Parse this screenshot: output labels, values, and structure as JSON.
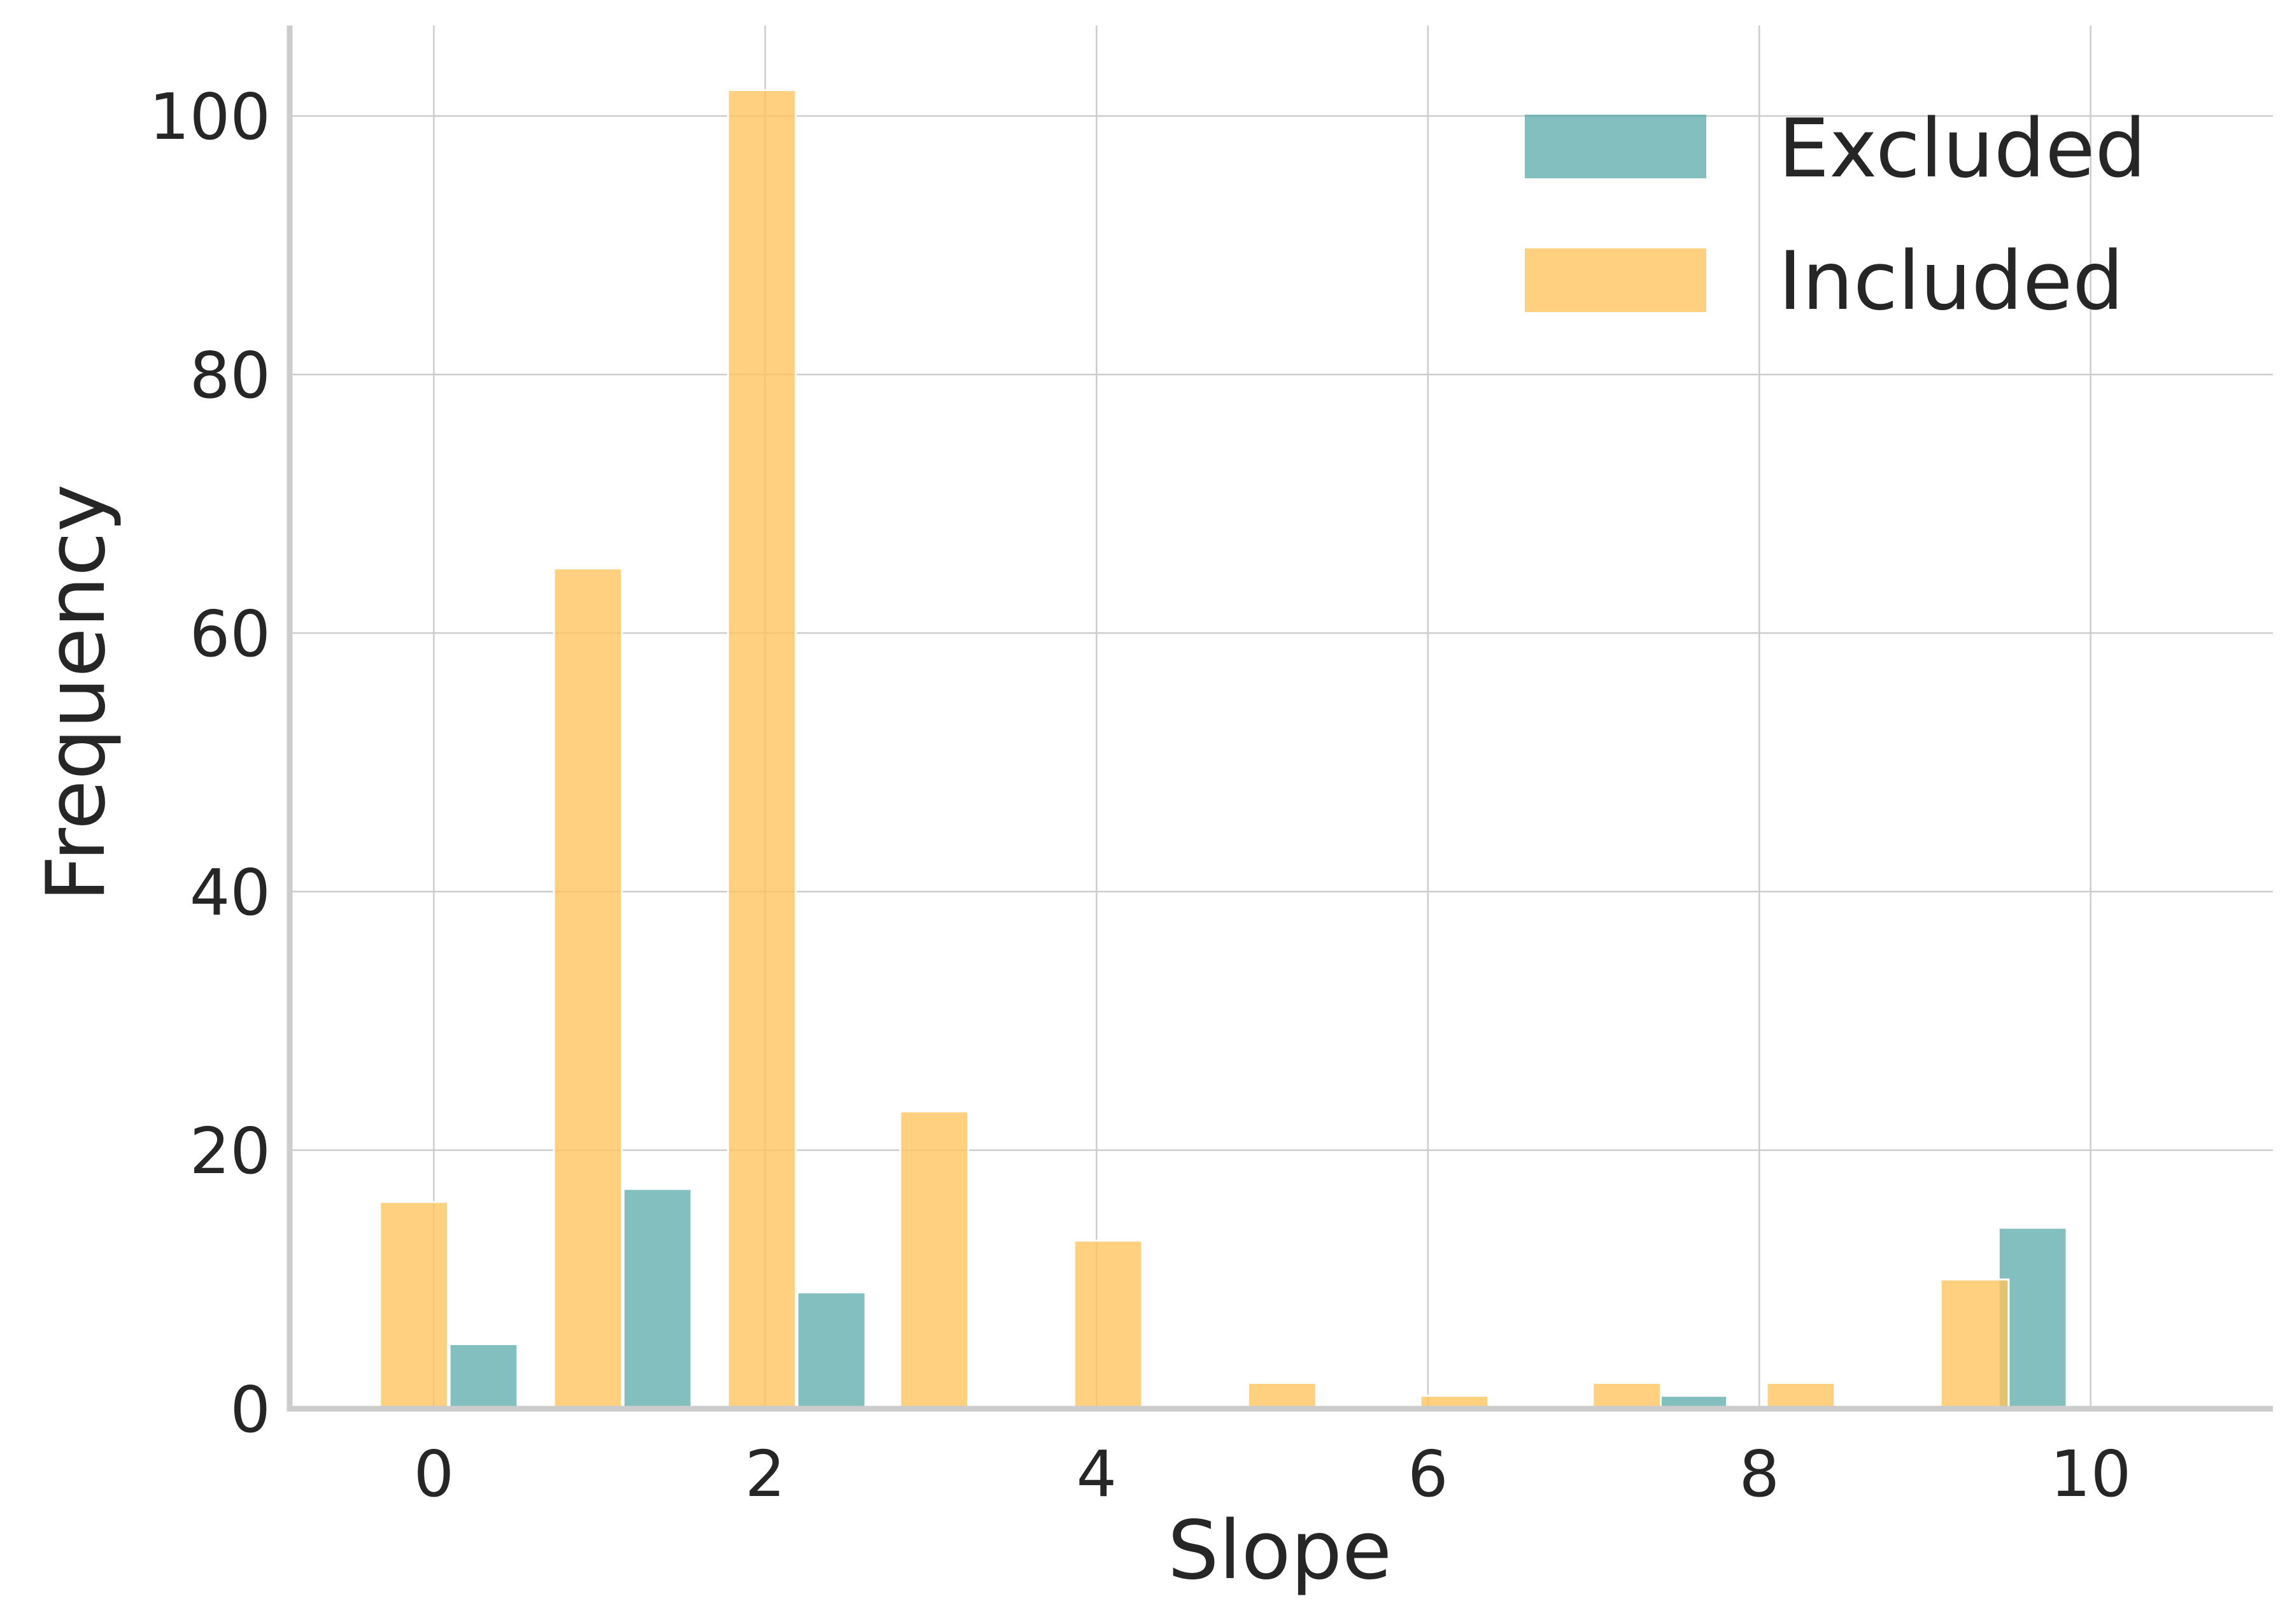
{
  "chart_data": {
    "type": "bar",
    "xlabel": "Slope",
    "ylabel": "Frequency",
    "xlim": [
      -0.87,
      11.1
    ],
    "ylim": [
      0,
      107
    ],
    "xticks": [
      0,
      2,
      4,
      6,
      8,
      10
    ],
    "yticks": [
      0,
      20,
      40,
      60,
      80,
      100
    ],
    "grid": true,
    "legend_position": "top-right",
    "series": [
      {
        "name": "Excluded",
        "color": "#5aa9a8",
        "x": [
          0.3,
          1.35,
          2.4,
          7.6,
          9.65
        ],
        "values": [
          5,
          17,
          9,
          1,
          14
        ]
      },
      {
        "name": "Included",
        "color": "#fec35c",
        "x": [
          -0.12,
          0.93,
          1.98,
          3.02,
          4.07,
          5.12,
          6.16,
          7.2,
          8.25,
          9.3
        ],
        "values": [
          16,
          65,
          102,
          23,
          13,
          2,
          1,
          2,
          2,
          10
        ]
      }
    ],
    "bar_width": 0.41
  }
}
